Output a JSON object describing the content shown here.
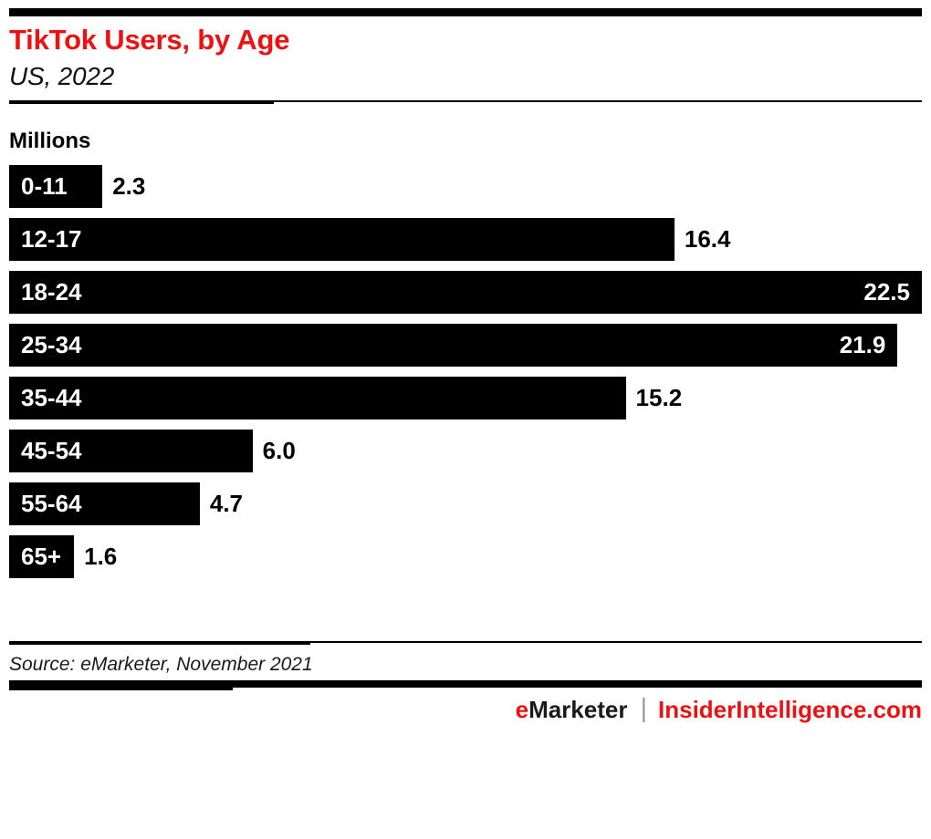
{
  "chart_data": {
    "type": "bar",
    "orientation": "horizontal",
    "title": "TikTok Users, by Age",
    "subtitle": "US, 2022",
    "unit_label": "Millions",
    "categories": [
      "0-11",
      "12-17",
      "18-24",
      "25-34",
      "35-44",
      "45-54",
      "55-64",
      "65+"
    ],
    "values": [
      2.3,
      16.4,
      22.5,
      21.9,
      15.2,
      6.0,
      4.7,
      1.6
    ],
    "value_labels": [
      "2.3",
      "16.4",
      "22.5",
      "21.9",
      "15.2",
      "6.0",
      "4.7",
      "1.6"
    ],
    "value_label_inside": [
      false,
      false,
      true,
      true,
      false,
      false,
      false,
      false
    ],
    "xlim": [
      0,
      22.5
    ],
    "grid": false,
    "legend": false,
    "bar_color": "#000000"
  },
  "footer": {
    "source": "Source: eMarketer, November 2021",
    "brand_left_accent": "e",
    "brand_left_rest": "Marketer",
    "brand_divider": "|",
    "brand_right": "InsiderIntelligence.com"
  },
  "colors": {
    "accent_red": "#ee1111",
    "ink_black": "#000000",
    "divider_gray": "#9b9b9b"
  }
}
